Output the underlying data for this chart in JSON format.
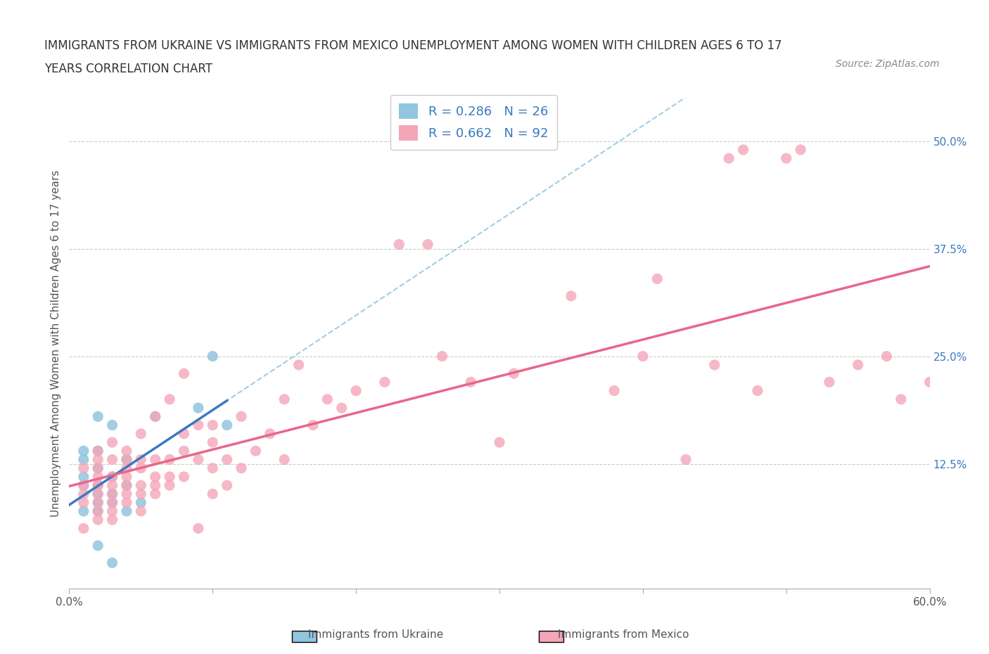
{
  "title_line1": "IMMIGRANTS FROM UKRAINE VS IMMIGRANTS FROM MEXICO UNEMPLOYMENT AMONG WOMEN WITH CHILDREN AGES 6 TO 17",
  "title_line2": "YEARS CORRELATION CHART",
  "source": "Source: ZipAtlas.com",
  "xlabel": "",
  "ylabel": "Unemployment Among Women with Children Ages 6 to 17 years",
  "xlim": [
    0.0,
    0.6
  ],
  "ylim": [
    -0.02,
    0.55
  ],
  "xticks": [
    0.0,
    0.1,
    0.2,
    0.3,
    0.4,
    0.5,
    0.6
  ],
  "xticklabels": [
    "0.0%",
    "",
    "",
    "",
    "",
    "",
    "60.0%"
  ],
  "ytick_right_labels": [
    "50.0%",
    "37.5%",
    "25.0%",
    "12.5%"
  ],
  "ytick_right_values": [
    0.5,
    0.375,
    0.25,
    0.125
  ],
  "ukraine_R": 0.286,
  "ukraine_N": 26,
  "mexico_R": 0.662,
  "mexico_N": 92,
  "ukraine_color": "#92c5de",
  "mexico_color": "#f4a6b8",
  "ukraine_line_color": "#3a7abf",
  "mexico_line_color": "#e8668a",
  "ukraine_trend_color": "#7ab8d9",
  "background_color": "#ffffff",
  "grid_color": "#cccccc",
  "ukraine_x": [
    0.01,
    0.01,
    0.01,
    0.01,
    0.01,
    0.02,
    0.02,
    0.02,
    0.02,
    0.02,
    0.02,
    0.02,
    0.02,
    0.03,
    0.03,
    0.03,
    0.03,
    0.03,
    0.04,
    0.04,
    0.04,
    0.05,
    0.06,
    0.09,
    0.1,
    0.11
  ],
  "ukraine_y": [
    0.07,
    0.1,
    0.11,
    0.13,
    0.14,
    0.03,
    0.07,
    0.08,
    0.09,
    0.1,
    0.12,
    0.14,
    0.18,
    0.01,
    0.08,
    0.09,
    0.11,
    0.17,
    0.07,
    0.1,
    0.13,
    0.08,
    0.18,
    0.19,
    0.25,
    0.17
  ],
  "mexico_x": [
    0.01,
    0.01,
    0.01,
    0.01,
    0.01,
    0.02,
    0.02,
    0.02,
    0.02,
    0.02,
    0.02,
    0.02,
    0.02,
    0.02,
    0.02,
    0.03,
    0.03,
    0.03,
    0.03,
    0.03,
    0.03,
    0.03,
    0.03,
    0.04,
    0.04,
    0.04,
    0.04,
    0.04,
    0.04,
    0.04,
    0.05,
    0.05,
    0.05,
    0.05,
    0.05,
    0.05,
    0.06,
    0.06,
    0.06,
    0.06,
    0.06,
    0.07,
    0.07,
    0.07,
    0.07,
    0.08,
    0.08,
    0.08,
    0.08,
    0.09,
    0.09,
    0.09,
    0.1,
    0.1,
    0.1,
    0.1,
    0.11,
    0.11,
    0.12,
    0.12,
    0.13,
    0.14,
    0.15,
    0.15,
    0.16,
    0.17,
    0.18,
    0.19,
    0.2,
    0.22,
    0.23,
    0.25,
    0.26,
    0.28,
    0.3,
    0.31,
    0.35,
    0.38,
    0.4,
    0.41,
    0.43,
    0.45,
    0.46,
    0.47,
    0.48,
    0.5,
    0.51,
    0.53,
    0.55,
    0.57,
    0.58,
    0.6
  ],
  "mexico_y": [
    0.05,
    0.08,
    0.09,
    0.1,
    0.12,
    0.06,
    0.07,
    0.08,
    0.09,
    0.1,
    0.1,
    0.11,
    0.12,
    0.13,
    0.14,
    0.06,
    0.07,
    0.08,
    0.09,
    0.1,
    0.11,
    0.13,
    0.15,
    0.08,
    0.09,
    0.1,
    0.11,
    0.12,
    0.13,
    0.14,
    0.07,
    0.09,
    0.1,
    0.12,
    0.13,
    0.16,
    0.09,
    0.1,
    0.11,
    0.13,
    0.18,
    0.1,
    0.11,
    0.13,
    0.2,
    0.11,
    0.14,
    0.16,
    0.23,
    0.05,
    0.13,
    0.17,
    0.09,
    0.12,
    0.15,
    0.17,
    0.1,
    0.13,
    0.12,
    0.18,
    0.14,
    0.16,
    0.13,
    0.2,
    0.24,
    0.17,
    0.2,
    0.19,
    0.21,
    0.22,
    0.38,
    0.38,
    0.25,
    0.22,
    0.15,
    0.23,
    0.32,
    0.21,
    0.25,
    0.34,
    0.13,
    0.24,
    0.48,
    0.49,
    0.21,
    0.48,
    0.49,
    0.22,
    0.24,
    0.25,
    0.2,
    0.22
  ]
}
